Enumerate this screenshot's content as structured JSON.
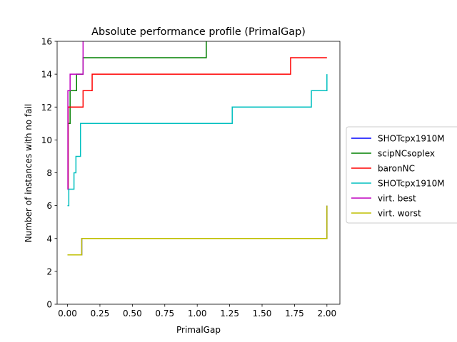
{
  "chart_data": {
    "type": "line",
    "drawstyle": "steps-post",
    "title": "Absolute performance profile (PrimalGap)",
    "xlabel": "PrimalGap",
    "ylabel": "Number of instances with no fail",
    "xlim": [
      -0.08,
      2.1
    ],
    "ylim": [
      0,
      16
    ],
    "xticks": [
      0.0,
      0.25,
      0.5,
      0.75,
      1.0,
      1.25,
      1.5,
      1.75,
      2.0
    ],
    "xtick_labels": [
      "0.00",
      "0.25",
      "0.50",
      "0.75",
      "1.00",
      "1.25",
      "1.50",
      "1.75",
      "2.00"
    ],
    "yticks": [
      0,
      2,
      4,
      6,
      8,
      10,
      12,
      14,
      16
    ],
    "ytick_labels": [
      "0",
      "2",
      "4",
      "6",
      "8",
      "10",
      "12",
      "14",
      "16"
    ],
    "grid": false,
    "legend_position": "outside-right",
    "series": [
      {
        "name": "SHOTcpx1910M",
        "color": "#0000ff",
        "points": [
          [
            0.0,
            3
          ],
          [
            0.11,
            3
          ],
          [
            0.11,
            4
          ],
          [
            2.0,
            4
          ],
          [
            2.0,
            6
          ]
        ]
      },
      {
        "name": "scipNCsoplex",
        "color": "#008000",
        "points": [
          [
            0.0,
            7
          ],
          [
            0.005,
            7
          ],
          [
            0.005,
            11
          ],
          [
            0.02,
            11
          ],
          [
            0.02,
            13
          ],
          [
            0.07,
            13
          ],
          [
            0.07,
            14
          ],
          [
            0.12,
            14
          ],
          [
            0.12,
            15
          ],
          [
            1.07,
            15
          ],
          [
            1.07,
            16
          ]
        ]
      },
      {
        "name": "baronNC",
        "color": "#ff0000",
        "points": [
          [
            0.0,
            7
          ],
          [
            0.005,
            7
          ],
          [
            0.005,
            12
          ],
          [
            0.12,
            12
          ],
          [
            0.12,
            13
          ],
          [
            0.19,
            13
          ],
          [
            0.19,
            14
          ],
          [
            1.72,
            14
          ],
          [
            1.72,
            15
          ],
          [
            2.0,
            15
          ]
        ]
      },
      {
        "name": "SHOTcpx1910M",
        "color": "#00bfbf",
        "points": [
          [
            0.0,
            6
          ],
          [
            0.01,
            6
          ],
          [
            0.01,
            7
          ],
          [
            0.05,
            7
          ],
          [
            0.05,
            8
          ],
          [
            0.065,
            8
          ],
          [
            0.065,
            9
          ],
          [
            0.1,
            9
          ],
          [
            0.1,
            11
          ],
          [
            1.27,
            11
          ],
          [
            1.27,
            12
          ],
          [
            1.88,
            12
          ],
          [
            1.88,
            13
          ],
          [
            2.0,
            13
          ],
          [
            2.0,
            14
          ]
        ]
      },
      {
        "name": "virt. best",
        "color": "#bf00bf",
        "points": [
          [
            0.0,
            7
          ],
          [
            0.003,
            7
          ],
          [
            0.003,
            13
          ],
          [
            0.02,
            13
          ],
          [
            0.02,
            14
          ],
          [
            0.12,
            14
          ],
          [
            0.12,
            16
          ]
        ]
      },
      {
        "name": "virt. worst",
        "color": "#bfbf00",
        "points": [
          [
            0.0,
            3
          ],
          [
            0.11,
            3
          ],
          [
            0.11,
            4
          ],
          [
            2.0,
            4
          ],
          [
            2.0,
            6
          ]
        ]
      }
    ]
  }
}
